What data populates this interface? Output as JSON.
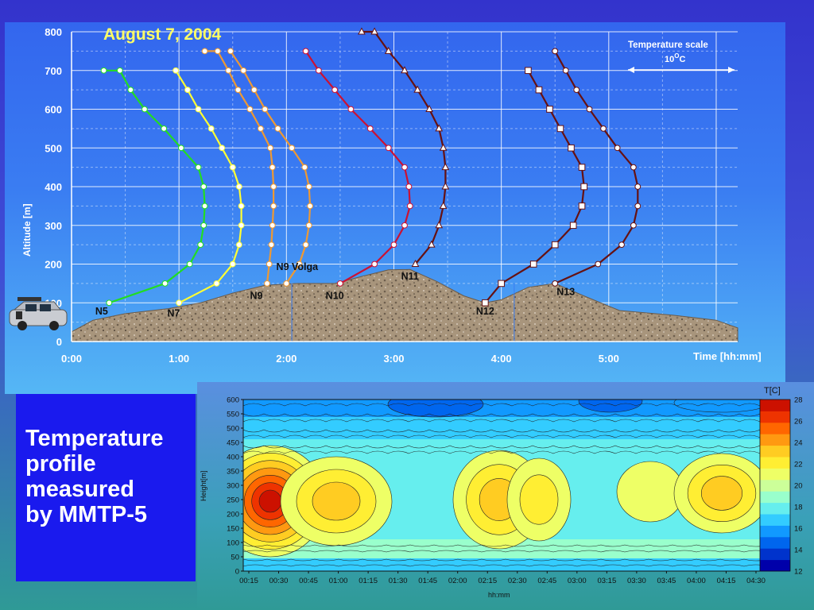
{
  "caption": {
    "line1": "Temperature",
    "line2": "profile",
    "line3": "measured",
    "line4": "by MMTP-5"
  },
  "chart_data": [
    {
      "type": "line",
      "title": "August 7, 2004",
      "xlabel": "Time [hh:mm]",
      "ylabel": "Altitude [m]",
      "x_tick_labels": [
        "0:00",
        "1:00",
        "2:00",
        "3:00",
        "4:00",
        "5:00"
      ],
      "y_tick_labels": [
        "0",
        "100",
        "200",
        "300",
        "400",
        "500",
        "600",
        "700",
        "800"
      ],
      "ylim": [
        0,
        800
      ],
      "xlim_hours": [
        0,
        6.2
      ],
      "grid": true,
      "scale_legend": {
        "title": "Temperature scale",
        "value": "10",
        "unit_sup": "O",
        "unit": "C"
      },
      "colors": {
        "green": "#22dd22",
        "yellow": "#ffff33",
        "orange": "#ee9933",
        "red": "#cc1133",
        "darkred": "#661111"
      },
      "series": [
        {
          "name": "N5",
          "color": "green",
          "marker": "circle",
          "x": [
            0.35,
            0.87,
            1.1,
            1.2,
            1.23,
            1.24,
            1.23,
            1.18,
            1.02,
            0.86,
            0.68,
            0.55,
            0.45,
            0.3
          ],
          "y": [
            100,
            150,
            200,
            250,
            300,
            350,
            400,
            450,
            500,
            550,
            600,
            650,
            700,
            700
          ]
        },
        {
          "name": "N7",
          "color": "yellow",
          "marker": "circle",
          "x": [
            1.0,
            1.35,
            1.5,
            1.56,
            1.58,
            1.58,
            1.56,
            1.5,
            1.4,
            1.3,
            1.18,
            1.08,
            0.97
          ],
          "y": [
            100,
            150,
            200,
            250,
            300,
            350,
            400,
            450,
            500,
            550,
            600,
            650,
            700
          ]
        },
        {
          "name": "N9",
          "color": "orange",
          "marker": "circle",
          "x": [
            1.82,
            1.84,
            1.86,
            1.87,
            1.88,
            1.88,
            1.87,
            1.85,
            1.76,
            1.66,
            1.55,
            1.46,
            1.36,
            1.24
          ],
          "y": [
            150,
            200,
            250,
            300,
            350,
            400,
            450,
            500,
            550,
            600,
            650,
            700,
            750,
            750
          ]
        },
        {
          "name": "N9 Volga",
          "color": "orange",
          "marker": "circle",
          "x": [
            2.0,
            2.12,
            2.18,
            2.21,
            2.22,
            2.21,
            2.17,
            2.05,
            1.92,
            1.8,
            1.7,
            1.6,
            1.48
          ],
          "y": [
            150,
            200,
            250,
            300,
            350,
            400,
            450,
            500,
            550,
            600,
            650,
            700,
            750
          ]
        },
        {
          "name": "N10",
          "color": "red",
          "marker": "circle",
          "x": [
            2.5,
            2.82,
            3.0,
            3.1,
            3.15,
            3.14,
            3.1,
            2.95,
            2.78,
            2.6,
            2.45,
            2.3,
            2.18
          ],
          "y": [
            150,
            200,
            250,
            300,
            350,
            400,
            450,
            500,
            550,
            600,
            650,
            700,
            750
          ]
        },
        {
          "name": "N11",
          "color": "darkred",
          "marker": "triangle",
          "x": [
            3.2,
            3.35,
            3.42,
            3.46,
            3.48,
            3.48,
            3.46,
            3.42,
            3.33,
            3.22,
            3.1,
            2.95,
            2.82,
            2.7
          ],
          "y": [
            200,
            250,
            300,
            350,
            400,
            450,
            500,
            550,
            600,
            650,
            700,
            750,
            800,
            800
          ]
        },
        {
          "name": "N12",
          "color": "darkred",
          "marker": "square",
          "x": [
            3.85,
            4.0,
            4.3,
            4.5,
            4.67,
            4.75,
            4.77,
            4.75,
            4.65,
            4.55,
            4.45,
            4.35,
            4.25
          ],
          "y": [
            100,
            150,
            200,
            250,
            300,
            350,
            400,
            450,
            500,
            550,
            600,
            650,
            700
          ]
        },
        {
          "name": "N13",
          "color": "darkred",
          "marker": "circle",
          "x": [
            4.5,
            4.9,
            5.12,
            5.23,
            5.27,
            5.27,
            5.23,
            5.08,
            4.95,
            4.82,
            4.7,
            4.6,
            4.5
          ],
          "y": [
            150,
            200,
            250,
            300,
            350,
            400,
            450,
            500,
            550,
            600,
            650,
            700,
            750
          ]
        }
      ],
      "terrain_labels": [
        {
          "text": "N5",
          "x": 0.28,
          "y": 70
        },
        {
          "text": "N7",
          "x": 0.95,
          "y": 65
        },
        {
          "text": "N9",
          "x": 1.72,
          "y": 110
        },
        {
          "text": "N9 Volga",
          "x": 2.1,
          "y": 185
        },
        {
          "text": "N10",
          "x": 2.45,
          "y": 110
        },
        {
          "text": "N11",
          "x": 3.15,
          "y": 160
        },
        {
          "text": "N12",
          "x": 3.85,
          "y": 70
        },
        {
          "text": "N13",
          "x": 4.6,
          "y": 120
        }
      ],
      "ground_profile": {
        "x": [
          0,
          0.2,
          0.5,
          0.9,
          1.2,
          1.5,
          1.8,
          2.1,
          2.45,
          2.7,
          2.95,
          3.15,
          3.4,
          3.65,
          3.85,
          4.0,
          4.25,
          4.5,
          4.75,
          5.1,
          5.6,
          6.0,
          6.2
        ],
        "y": [
          25,
          55,
          72,
          85,
          100,
          125,
          145,
          150,
          150,
          168,
          185,
          186,
          155,
          118,
          100,
          108,
          140,
          150,
          120,
          80,
          68,
          55,
          35
        ]
      }
    },
    {
      "type": "heatmap",
      "title": "",
      "xlabel": "hh:mm",
      "ylabel": "Height[m]",
      "x_tick_labels": [
        "00:15",
        "00:30",
        "00:45",
        "01:00",
        "01:15",
        "01:30",
        "01:45",
        "02:00",
        "02:15",
        "02:30",
        "02:45",
        "03:00",
        "03:15",
        "03:30",
        "03:45",
        "04:00",
        "04:15",
        "04:30"
      ],
      "y_tick_labels": [
        "0",
        "50",
        "100",
        "150",
        "200",
        "250",
        "300",
        "350",
        "400",
        "450",
        "500",
        "550",
        "600"
      ],
      "ylim": [
        0,
        600
      ],
      "colorbar": {
        "title": "T[C]",
        "tick_labels": [
          "12",
          "14",
          "16",
          "18",
          "20",
          "22",
          "24",
          "26",
          "28"
        ],
        "range": [
          12,
          28
        ],
        "colors": [
          "#0000aa",
          "#0033cc",
          "#0066ee",
          "#1199ff",
          "#33ccff",
          "#66eeee",
          "#99ffcc",
          "#ccff99",
          "#eeff66",
          "#ffee33",
          "#ffcc22",
          "#ff9911",
          "#ff6600",
          "#ee3300",
          "#cc1100"
        ]
      }
    }
  ]
}
